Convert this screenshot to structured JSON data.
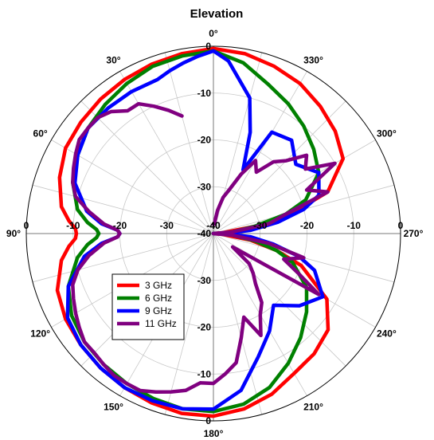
{
  "chart_data": {
    "type": "polar-line",
    "title": "Elevation",
    "angle_labels": [
      "0°",
      "30°",
      "60°",
      "90°",
      "120°",
      "150°",
      "180°",
      "210°",
      "240°",
      "270°",
      "300°",
      "330°"
    ],
    "angle_label_values": [
      0,
      30,
      60,
      90,
      120,
      150,
      180,
      210,
      240,
      270,
      300,
      330
    ],
    "radial_range": [
      -40,
      0
    ],
    "radial_ticks": [
      -40,
      -30,
      -20,
      -10,
      0
    ],
    "radial_tick_labels": [
      "-40",
      "-30",
      "-20",
      "-10",
      "0"
    ],
    "grid": true,
    "legend_position": "lower-left",
    "series": [
      {
        "name": "3 GHz",
        "color": "#ff0000",
        "angles": [
          0,
          10,
          20,
          30,
          40,
          50,
          60,
          70,
          80,
          85,
          88,
          90,
          92,
          95,
          100,
          110,
          120,
          130,
          140,
          150,
          160,
          170,
          180,
          190,
          200,
          210,
          220,
          230,
          240,
          250,
          255,
          260,
          265,
          268,
          270,
          272,
          275,
          280,
          285,
          290,
          300,
          310,
          320,
          330,
          340,
          350,
          360
        ],
        "values": [
          -0.5,
          -1,
          -1.5,
          -2,
          -2.5,
          -3,
          -3.5,
          -5,
          -7,
          -9,
          -10.5,
          -10.7,
          -10.5,
          -9,
          -7,
          -4.5,
          -3.5,
          -3,
          -2.5,
          -2,
          -1.5,
          -1,
          -1,
          -2,
          -3.5,
          -5.5,
          -6.5,
          -8,
          -12,
          -20,
          -26,
          -32,
          -38,
          -40,
          -40,
          -40,
          -38,
          -30,
          -22,
          -14,
          -8,
          -6,
          -4.5,
          -3,
          -2,
          -1,
          -0.5
        ]
      },
      {
        "name": "6 GHz",
        "color": "#008000",
        "angles": [
          0,
          10,
          20,
          30,
          40,
          50,
          60,
          70,
          80,
          85,
          88,
          90,
          92,
          95,
          100,
          110,
          120,
          130,
          140,
          150,
          160,
          170,
          180,
          190,
          200,
          210,
          220,
          230,
          240,
          250,
          255,
          260,
          265,
          268,
          270,
          272,
          275,
          280,
          285,
          290,
          300,
          310,
          320,
          330,
          340,
          350,
          360
        ],
        "values": [
          -1,
          -1.5,
          -2,
          -3,
          -4,
          -5,
          -6.5,
          -8,
          -10.5,
          -13,
          -15,
          -15.5,
          -15,
          -13,
          -10.5,
          -7,
          -5,
          -4,
          -3.5,
          -3,
          -2.5,
          -2,
          -2,
          -3,
          -5,
          -8,
          -11,
          -14,
          -17,
          -22,
          -26,
          -31,
          -36,
          -39,
          -40,
          -39,
          -36,
          -31,
          -24,
          -19,
          -14,
          -12,
          -10,
          -8,
          -6,
          -3,
          -1
        ]
      },
      {
        "name": "9 GHz",
        "color": "#0000ff",
        "angles": [
          0,
          5,
          10,
          15,
          20,
          30,
          40,
          50,
          60,
          70,
          80,
          85,
          88,
          90,
          92,
          95,
          100,
          110,
          120,
          130,
          140,
          150,
          160,
          170,
          180,
          190,
          200,
          210,
          220,
          230,
          240,
          250,
          255,
          260,
          265,
          268,
          270,
          272,
          275,
          280,
          285,
          290,
          300,
          310,
          320,
          330,
          335,
          340,
          345,
          350,
          355,
          360
        ],
        "values": [
          -1,
          -2,
          -3,
          -4,
          -5,
          -5,
          -5,
          -5,
          -6.5,
          -8.5,
          -12.5,
          -16,
          -19.5,
          -20,
          -19.5,
          -16,
          -12,
          -7,
          -4,
          -3,
          -2.5,
          -2,
          -2,
          -2,
          -2.5,
          -6,
          -12,
          -16,
          -20,
          -16,
          -13,
          -17,
          -21,
          -27,
          -32,
          -37,
          -40,
          -37,
          -32,
          -26,
          -20,
          -16,
          -14,
          -17,
          -14,
          -15,
          -25,
          -17,
          -10,
          -7,
          -3,
          -1
        ]
      },
      {
        "name": "11 GHz",
        "color": "#800080",
        "angles": [
          15,
          20,
          25,
          30,
          35,
          40,
          45,
          50,
          55,
          60,
          65,
          70,
          75,
          80,
          85,
          88,
          90,
          92,
          95,
          100,
          105,
          110,
          115,
          120,
          125,
          130,
          135,
          140,
          145,
          150,
          155,
          160,
          165,
          170,
          175,
          180,
          185,
          190,
          195,
          200,
          205,
          210,
          215,
          220,
          225,
          230,
          235,
          240,
          245,
          250,
          255,
          260,
          265,
          268,
          270,
          272,
          275,
          280,
          285,
          290,
          295,
          300,
          305,
          310,
          315,
          320,
          325,
          330,
          335,
          340,
          345,
          350,
          355,
          360
        ],
        "values": [
          -14,
          -12,
          -10,
          -8,
          -8,
          -6,
          -5,
          -5,
          -5,
          -6,
          -7,
          -8,
          -9.5,
          -13,
          -16.5,
          -19.5,
          -20,
          -19.5,
          -16.5,
          -13,
          -10,
          -8,
          -7,
          -6,
          -5,
          -4,
          -4,
          -3.5,
          -3,
          -3,
          -3,
          -4,
          -5,
          -6,
          -8,
          -8,
          -10,
          -12,
          -17,
          -21,
          -16,
          -20,
          -22,
          -26,
          -28,
          -30,
          -35,
          -14,
          -20,
          -24,
          -20,
          -28,
          -36,
          -40,
          -40,
          -40,
          -36,
          -28,
          -24,
          -14,
          -18,
          -10,
          -16,
          -14,
          -18,
          -20,
          -24,
          -22,
          -26,
          -30,
          -32,
          -35,
          -38,
          -38
        ]
      }
    ]
  }
}
